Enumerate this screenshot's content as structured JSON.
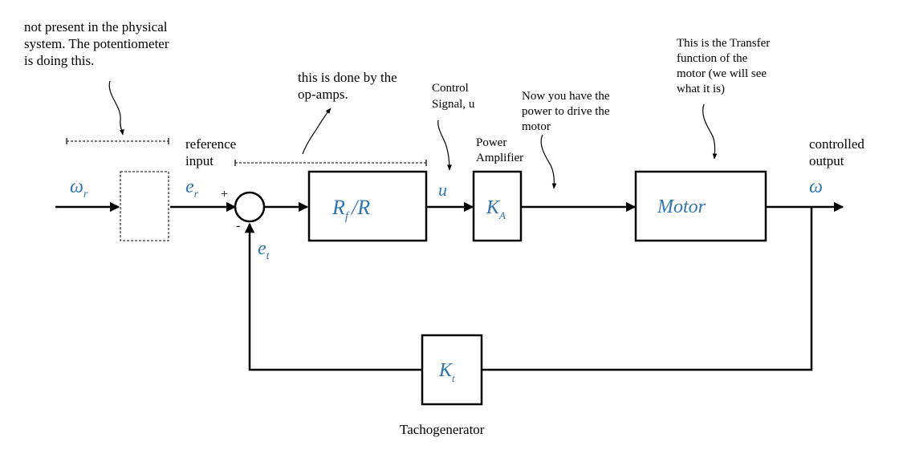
{
  "annotations": {
    "potentiometer_note": [
      "not present in the physical",
      "system. The potentiometer",
      "is doing this."
    ],
    "opamp_note": [
      "this is done by the",
      "op-amps."
    ],
    "control_signal": [
      "Control",
      "Signal, u"
    ],
    "power_note": [
      "Now you have the",
      "power to drive the",
      "motor"
    ],
    "transfer_note": [
      "This is the Transfer",
      "function of the",
      "motor (we will see",
      "what it is)"
    ],
    "reference_input": [
      "reference",
      "input"
    ],
    "power_amplifier": [
      "Power",
      "Amplifier"
    ],
    "controlled_output": [
      "controlled",
      "output"
    ],
    "tachogenerator": "Tachogenerator"
  },
  "signals": {
    "omega_r": {
      "main": "ω",
      "sub": "r"
    },
    "e_r": {
      "main": "e",
      "sub": "r"
    },
    "e_t": {
      "main": "e",
      "sub": "t"
    },
    "u": "u",
    "omega": "ω",
    "plus": "+",
    "minus": "-"
  },
  "blocks": {
    "gain": {
      "main": "R",
      "sub": "f",
      "rest": "/R"
    },
    "amp": {
      "main": "K",
      "sub": "A"
    },
    "motor": "Motor",
    "tacho": {
      "main": "K",
      "sub": "t"
    }
  },
  "colors": {
    "signal": "#2e75b6",
    "line": "#000000"
  }
}
